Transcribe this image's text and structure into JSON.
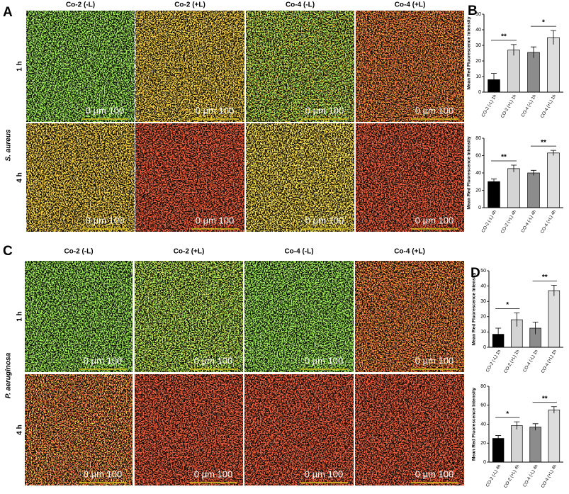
{
  "panels": {
    "labels": [
      "A",
      "B",
      "C",
      "D"
    ]
  },
  "figure_a": {
    "columns": [
      "Co-2 (-L)",
      "Co-2 (+L)",
      "Co-4 (-L)",
      "Co-4 (+L)"
    ],
    "rows": [
      "1 h",
      "4 h"
    ],
    "organism": "S. aureus",
    "scale_bar": "0  µm  100"
  },
  "figure_c": {
    "columns": [
      "Co-2 (-L)",
      "Co-2 (+L)",
      "Co-4 (-L)",
      "Co-4 (+L)"
    ],
    "rows": [
      "1 h",
      "4 h"
    ],
    "organism": "P. aeruginosa",
    "scale_bar": "0  µm  100"
  },
  "chart_data": [
    {
      "type": "bar",
      "y_label": "Mean Red Fluorescence Intensity",
      "categories": [
        "CO-2 (-L) 1h",
        "CO-2 (+L) 1h",
        "CO-4 (-L) 1h",
        "CO-4 (+L) 1h"
      ],
      "values": [
        8,
        27,
        25.5,
        35
      ],
      "errors": [
        4,
        3.5,
        3.5,
        4.5
      ],
      "colors": [
        "#000000",
        "#d4d4d4",
        "#8c8c8c",
        "#dedede"
      ],
      "ylim": [
        0,
        50
      ],
      "yticks": [
        0,
        10,
        20,
        30,
        40,
        50
      ],
      "annotations": [
        {
          "label": "**",
          "between": [
            0,
            1
          ]
        },
        {
          "label": "*",
          "between": [
            2,
            3
          ]
        }
      ]
    },
    {
      "type": "bar",
      "y_label": "Mean Red Fluorescence Intensity",
      "categories": [
        "CO-2 (-L) 4h",
        "CO-2 (+L) 4h",
        "CO-4 (-L) 4h",
        "CO-4 (+L) 4h"
      ],
      "values": [
        30,
        45,
        40,
        63
      ],
      "errors": [
        3,
        4,
        3,
        3
      ],
      "colors": [
        "#000000",
        "#d4d4d4",
        "#8c8c8c",
        "#dedede"
      ],
      "ylim": [
        0,
        80
      ],
      "yticks": [
        0,
        20,
        40,
        60,
        80
      ],
      "annotations": [
        {
          "label": "**",
          "between": [
            0,
            1
          ]
        },
        {
          "label": "**",
          "between": [
            2,
            3
          ]
        }
      ]
    },
    {
      "type": "bar",
      "y_label": "Mean Red Fluorescence Intensity",
      "categories": [
        "CO-2 (-L) 1h",
        "CO-2 (+L) 1h",
        "CO-4 (-L) 1h",
        "CO-4 (+L) 1h"
      ],
      "values": [
        8.5,
        18,
        12.5,
        37
      ],
      "errors": [
        4,
        4.5,
        4,
        3.5
      ],
      "colors": [
        "#000000",
        "#d4d4d4",
        "#8c8c8c",
        "#dedede"
      ],
      "ylim": [
        0,
        50
      ],
      "yticks": [
        0,
        10,
        20,
        30,
        40,
        50
      ],
      "annotations": [
        {
          "label": "*",
          "between": [
            0,
            1
          ]
        },
        {
          "label": "**",
          "between": [
            2,
            3
          ]
        }
      ]
    },
    {
      "type": "bar",
      "y_label": "Mean Red Fluorescence Intensity",
      "categories": [
        "CO-2 (-L) 4h",
        "CO-2 (+L) 4h",
        "CO-4 (-L) 4h",
        "CO-4 (+L) 4h"
      ],
      "values": [
        25,
        38.5,
        37,
        55
      ],
      "errors": [
        3,
        4,
        3.5,
        3.5
      ],
      "colors": [
        "#000000",
        "#d4d4d4",
        "#8c8c8c",
        "#dedede"
      ],
      "ylim": [
        0,
        80
      ],
      "yticks": [
        0,
        20,
        40,
        60,
        80
      ],
      "annotations": [
        {
          "label": "*",
          "between": [
            0,
            1
          ]
        },
        {
          "label": "**",
          "between": [
            2,
            3
          ]
        }
      ]
    }
  ]
}
